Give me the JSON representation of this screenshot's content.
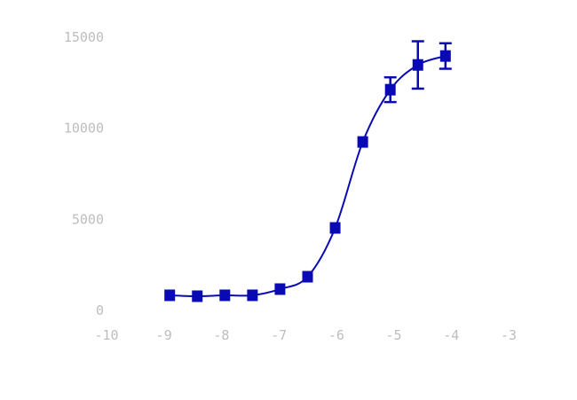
{
  "chart_data": {
    "type": "scatter",
    "title": "",
    "xlabel": "",
    "ylabel": "",
    "xlim": [
      -10,
      -3
    ],
    "ylim": [
      0,
      15000
    ],
    "x_ticks": [
      -10,
      -9,
      -8,
      -7,
      -6,
      -5,
      -4,
      -3
    ],
    "y_ticks": [
      0,
      5000,
      10000,
      15000
    ],
    "grid": false,
    "legend": "none",
    "color": "#0a0ab4",
    "fit_curve": "sigmoidal",
    "series": [
      {
        "x": [
          -8.9,
          -8.42,
          -7.94,
          -7.46,
          -6.98,
          -6.5,
          -6.02,
          -5.54,
          -5.06,
          -4.58,
          -4.1
        ],
        "y": [
          830,
          780,
          830,
          830,
          1170,
          1850,
          4530,
          9250,
          12120,
          13480,
          13970
        ],
        "error": [
          0,
          0,
          0,
          0,
          0,
          0,
          0,
          0,
          680,
          1300,
          700
        ]
      }
    ]
  }
}
